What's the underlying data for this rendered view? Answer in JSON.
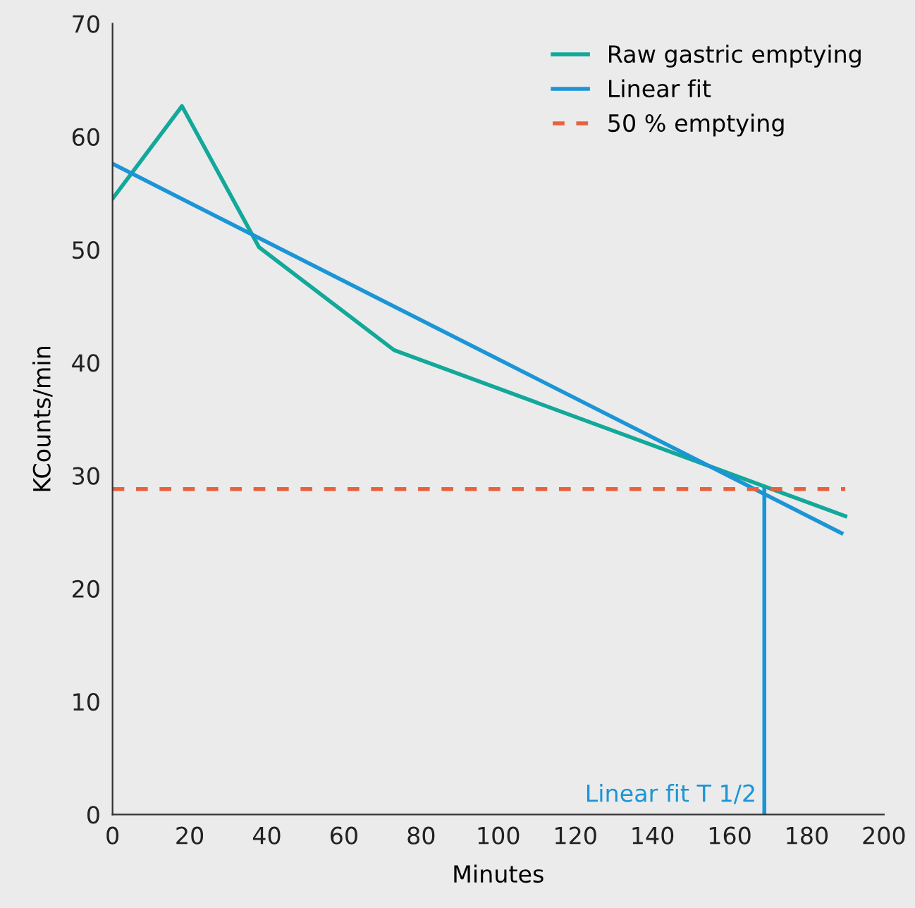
{
  "chart_data": {
    "type": "line",
    "xlabel": "Minutes",
    "ylabel": "KCounts/min",
    "xlim": [
      0,
      200
    ],
    "ylim": [
      0,
      70
    ],
    "xticks": [
      0,
      20,
      40,
      60,
      80,
      100,
      120,
      140,
      160,
      180,
      200
    ],
    "yticks": [
      0,
      10,
      20,
      30,
      40,
      50,
      60,
      70
    ],
    "grid": false,
    "legend": "top right",
    "line_style": "solid",
    "marker": "none",
    "series": [
      {
        "name": "Raw gastric emptying",
        "color": "#12a89a",
        "x": [
          0,
          18,
          38,
          73,
          190
        ],
        "values": [
          54.5,
          62.7,
          50.2,
          41.1,
          26.4
        ]
      },
      {
        "name": "Linear fit",
        "color": "#1b95d6",
        "x": [
          0,
          189
        ],
        "values": [
          57.6,
          24.9
        ]
      },
      {
        "name": "50 % emptying",
        "color": "#e8603c",
        "line_style": "dashed",
        "x": [
          0,
          190
        ],
        "values": [
          28.8,
          28.8
        ]
      },
      {
        "color": "#1b95d6",
        "x": [
          169,
          169
        ],
        "values": [
          0,
          28.8
        ]
      }
    ],
    "annotations": [
      {
        "text": "Linear fit T 1/2",
        "x": 169,
        "y": 0
      }
    ]
  }
}
